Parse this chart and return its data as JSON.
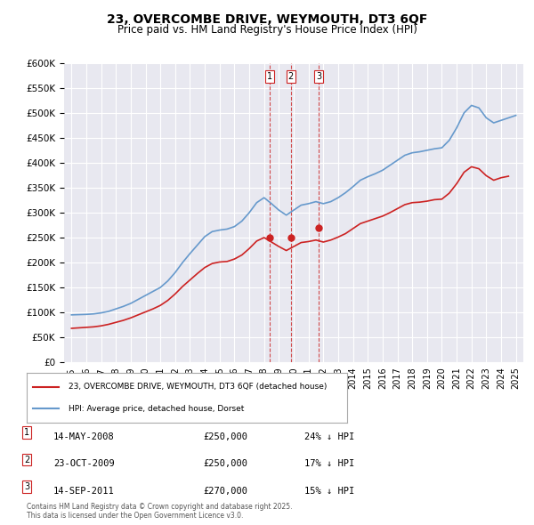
{
  "title": "23, OVERCOMBE DRIVE, WEYMOUTH, DT3 6QF",
  "subtitle": "Price paid vs. HM Land Registry's House Price Index (HPI)",
  "ylabel": "",
  "background_color": "#ffffff",
  "plot_bg_color": "#e8e8f0",
  "hpi_color": "#6699cc",
  "price_color": "#cc2222",
  "ylim": [
    0,
    600000
  ],
  "yticks": [
    0,
    50000,
    100000,
    150000,
    200000,
    250000,
    300000,
    350000,
    400000,
    450000,
    500000,
    550000,
    600000
  ],
  "year_start": 1995,
  "year_end": 2025,
  "transactions": [
    {
      "label": "1",
      "date": "14-MAY-2008",
      "year": 2008.37,
      "price": 250000,
      "pct": "24% ↓ HPI"
    },
    {
      "label": "2",
      "date": "23-OCT-2009",
      "year": 2009.81,
      "price": 250000,
      "pct": "17% ↓ HPI"
    },
    {
      "label": "3",
      "date": "14-SEP-2011",
      "year": 2011.71,
      "price": 270000,
      "pct": "15% ↓ HPI"
    }
  ],
  "legend_line1": "23, OVERCOMBE DRIVE, WEYMOUTH, DT3 6QF (detached house)",
  "legend_line2": "HPI: Average price, detached house, Dorset",
  "footnote": "Contains HM Land Registry data © Crown copyright and database right 2025.\nThis data is licensed under the Open Government Licence v3.0.",
  "hpi_data_x": [
    1995,
    1995.5,
    1996,
    1996.5,
    1997,
    1997.5,
    1998,
    1998.5,
    1999,
    1999.5,
    2000,
    2000.5,
    2001,
    2001.5,
    2002,
    2002.5,
    2003,
    2003.5,
    2004,
    2004.5,
    2005,
    2005.5,
    2006,
    2006.5,
    2007,
    2007.5,
    2008,
    2008.5,
    2009,
    2009.5,
    2010,
    2010.5,
    2011,
    2011.5,
    2012,
    2012.5,
    2013,
    2013.5,
    2014,
    2014.5,
    2015,
    2015.5,
    2016,
    2016.5,
    2017,
    2017.5,
    2018,
    2018.5,
    2019,
    2019.5,
    2020,
    2020.5,
    2021,
    2021.5,
    2022,
    2022.5,
    2023,
    2023.5,
    2024,
    2024.5,
    2025
  ],
  "hpi_data_y": [
    95000,
    95500,
    96000,
    97000,
    99000,
    102000,
    107000,
    112000,
    118000,
    126000,
    134000,
    142000,
    150000,
    163000,
    180000,
    200000,
    218000,
    235000,
    252000,
    262000,
    265000,
    267000,
    272000,
    283000,
    300000,
    320000,
    330000,
    318000,
    305000,
    295000,
    305000,
    315000,
    318000,
    322000,
    318000,
    322000,
    330000,
    340000,
    352000,
    365000,
    372000,
    378000,
    385000,
    395000,
    405000,
    415000,
    420000,
    422000,
    425000,
    428000,
    430000,
    445000,
    470000,
    500000,
    515000,
    510000,
    490000,
    480000,
    485000,
    490000,
    495000
  ],
  "price_data_x": [
    1995,
    1995.5,
    1996,
    1996.5,
    1997,
    1997.5,
    1998,
    1998.5,
    1999,
    1999.5,
    2000,
    2000.5,
    2001,
    2001.5,
    2002,
    2002.5,
    2003,
    2003.5,
    2004,
    2004.5,
    2005,
    2005.5,
    2006,
    2006.5,
    2007,
    2007.5,
    2008,
    2008.5,
    2009,
    2009.5,
    2010,
    2010.5,
    2011,
    2011.5,
    2012,
    2012.5,
    2013,
    2013.5,
    2014,
    2014.5,
    2015,
    2015.5,
    2016,
    2016.5,
    2017,
    2017.5,
    2018,
    2018.5,
    2019,
    2019.5,
    2020,
    2020.5,
    2021,
    2021.5,
    2022,
    2022.5,
    2023,
    2023.5,
    2024,
    2024.5
  ],
  "price_data_y": [
    68000,
    69000,
    70000,
    71000,
    73000,
    76000,
    80000,
    84000,
    89000,
    95000,
    101000,
    107000,
    114000,
    124000,
    137000,
    152000,
    165000,
    178000,
    190000,
    198000,
    201000,
    202000,
    207000,
    215000,
    228000,
    243000,
    250000,
    241000,
    232000,
    224000,
    232000,
    240000,
    242000,
    245000,
    241000,
    245000,
    251000,
    258000,
    268000,
    278000,
    283000,
    288000,
    293000,
    300000,
    308000,
    316000,
    320000,
    321000,
    323000,
    326000,
    327000,
    339000,
    358000,
    381000,
    392000,
    388000,
    374000,
    365000,
    370000,
    373000
  ]
}
